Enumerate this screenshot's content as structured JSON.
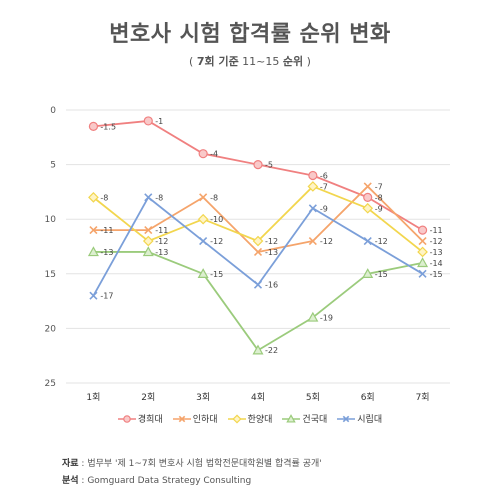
{
  "header": {
    "title": "변호사 시험 합격률 순위 변화",
    "subtitle_open": "( ",
    "subtitle_bold": "7회 기준",
    "subtitle_range": " 11~15 ",
    "subtitle_bold2": "순위",
    "subtitle_close": " )"
  },
  "footer": {
    "source_label": "자료",
    "source_text": " : 법무부 '제 1~7회 변호사 시험 법학전문대학원별 합격률 공개'",
    "analysis_label": "분석",
    "analysis_text": " : Gomguard Data Strategy Consulting"
  },
  "chart_data": {
    "type": "line",
    "title": "변호사 시험 합격률 순위 변화",
    "subtitle": "( 7회 기준 11~15 순위 )",
    "categories": [
      "1회",
      "2회",
      "3회",
      "4회",
      "5회",
      "6회",
      "7회"
    ],
    "ylim": [
      0,
      25
    ],
    "y_reversed": true,
    "yticks": [
      0,
      5,
      10,
      15,
      20,
      25
    ],
    "grid": true,
    "legend_position": "bottom",
    "label_prefix": "-",
    "series": [
      {
        "name": "경희대",
        "color": "#f08080",
        "marker": "circle",
        "values": [
          1.5,
          1,
          4,
          5,
          6,
          8,
          11
        ]
      },
      {
        "name": "인하대",
        "color": "#f5a46b",
        "marker": "x",
        "values": [
          11,
          11,
          8,
          13,
          12,
          7,
          12
        ]
      },
      {
        "name": "한양대",
        "color": "#f2d64e",
        "marker": "diamond",
        "values": [
          8,
          12,
          10,
          12,
          7,
          9,
          13
        ]
      },
      {
        "name": "건국대",
        "color": "#9bcb7c",
        "marker": "triangle",
        "values": [
          13,
          13,
          15,
          22,
          19,
          15,
          14
        ]
      },
      {
        "name": "시립대",
        "color": "#7b9fd9",
        "marker": "x",
        "values": [
          17,
          8,
          12,
          16,
          9,
          12,
          15
        ]
      }
    ]
  }
}
